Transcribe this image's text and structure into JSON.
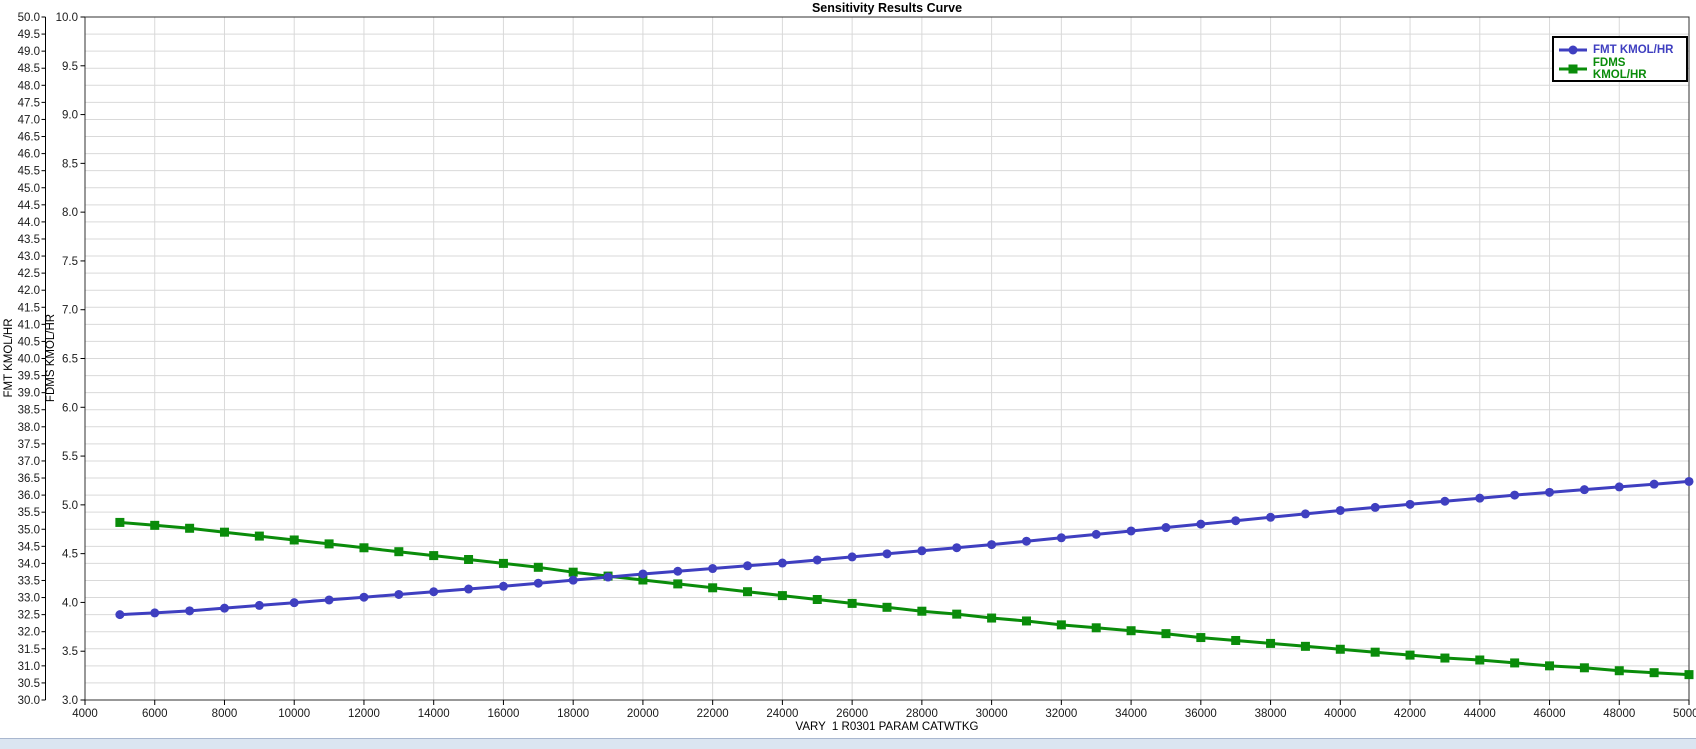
{
  "chart_data": {
    "type": "line",
    "title": "Sensitivity Results Curve",
    "xlabel": "VARY  1 R0301 PARAM CATWTKG",
    "grid": true,
    "legend_position": "top-right",
    "x_axis": {
      "min": 4000,
      "max": 50000,
      "tick_step": 2000
    },
    "y_axes": [
      {
        "id": "fmt",
        "label": "FMT KMOL/HR",
        "min": 30.0,
        "max": 50.0,
        "tick_step": 0.5
      },
      {
        "id": "fdms",
        "label": "FDMS KMOL/HR",
        "min": 3.0,
        "max": 10.0,
        "tick_step": 0.5
      }
    ],
    "x": [
      5000,
      6000,
      7000,
      8000,
      9000,
      10000,
      11000,
      12000,
      13000,
      14000,
      15000,
      16000,
      17000,
      18000,
      19000,
      20000,
      21000,
      22000,
      23000,
      24000,
      25000,
      26000,
      27000,
      28000,
      29000,
      30000,
      31000,
      32000,
      33000,
      34000,
      35000,
      36000,
      37000,
      38000,
      39000,
      40000,
      41000,
      42000,
      43000,
      44000,
      45000,
      46000,
      47000,
      48000,
      49000,
      50000
    ],
    "series": [
      {
        "name": "FMT KMOL/HR",
        "axis": "fmt",
        "color": "#3f3fc0",
        "marker": "circle",
        "values": [
          32.5,
          32.55,
          32.61,
          32.69,
          32.77,
          32.85,
          32.93,
          33.01,
          33.09,
          33.17,
          33.25,
          33.33,
          33.42,
          33.51,
          33.6,
          33.69,
          33.77,
          33.85,
          33.93,
          34.01,
          34.1,
          34.19,
          34.28,
          34.37,
          34.46,
          34.55,
          34.65,
          34.75,
          34.85,
          34.95,
          35.05,
          35.15,
          35.25,
          35.35,
          35.45,
          35.55,
          35.64,
          35.73,
          35.82,
          35.91,
          36.0,
          36.08,
          36.16,
          36.24,
          36.32,
          36.4
        ]
      },
      {
        "name": "FDMS KMOL/HR",
        "axis": "fdms",
        "color": "#0a8c0a",
        "marker": "square",
        "values": [
          4.82,
          4.79,
          4.76,
          4.72,
          4.68,
          4.64,
          4.6,
          4.56,
          4.52,
          4.48,
          4.44,
          4.4,
          4.36,
          4.31,
          4.27,
          4.23,
          4.19,
          4.15,
          4.11,
          4.07,
          4.03,
          3.99,
          3.95,
          3.91,
          3.88,
          3.84,
          3.81,
          3.77,
          3.74,
          3.71,
          3.68,
          3.64,
          3.61,
          3.58,
          3.55,
          3.52,
          3.49,
          3.46,
          3.43,
          3.41,
          3.38,
          3.35,
          3.33,
          3.3,
          3.28,
          3.26
        ]
      }
    ],
    "colors": {
      "grid": "#d9d9d9",
      "axis": "#303030",
      "tick_text": "#1a1a1a"
    }
  }
}
